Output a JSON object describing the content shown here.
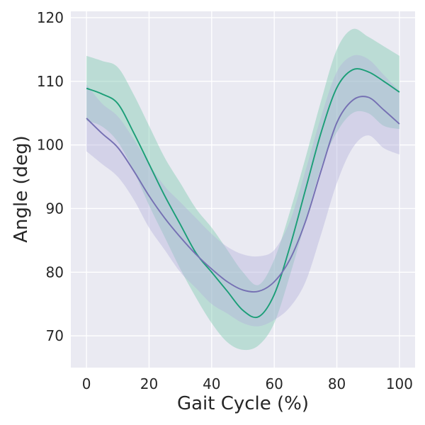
{
  "chart_data": {
    "type": "line",
    "title": "",
    "xlabel": "Gait Cycle (%)",
    "ylabel": "Angle (deg)",
    "xlim": [
      -5,
      105
    ],
    "ylim": [
      65,
      121
    ],
    "xticks": [
      0,
      20,
      40,
      60,
      80,
      100
    ],
    "yticks": [
      70,
      80,
      90,
      100,
      110,
      120
    ],
    "grid": true,
    "legend": "none",
    "x": [
      0,
      5,
      10,
      15,
      20,
      25,
      30,
      35,
      40,
      45,
      50,
      55,
      60,
      65,
      70,
      75,
      80,
      85,
      90,
      95,
      100
    ],
    "series": [
      {
        "color": "#1b9e77",
        "band_color": "#7ac8ae",
        "values": [
          108.9,
          108.0,
          106.5,
          102.0,
          97.0,
          92.0,
          87.5,
          83.0,
          80.0,
          77.0,
          74.0,
          73.0,
          76.5,
          84.0,
          93.0,
          102.0,
          109.0,
          111.8,
          111.5,
          110.0,
          108.3
        ],
        "lower": [
          103.8,
          102.9,
          100.5,
          96.0,
          90.5,
          85.5,
          80.5,
          76.0,
          72.0,
          69.0,
          67.8,
          68.5,
          72.0,
          79.5,
          88.0,
          96.5,
          102.0,
          105.0,
          105.0,
          103.0,
          102.5
        ],
        "upper": [
          114.0,
          113.2,
          112.2,
          108.0,
          103.0,
          98.0,
          94.0,
          90.0,
          87.0,
          83.5,
          80.0,
          78.0,
          82.0,
          89.5,
          98.0,
          107.0,
          115.0,
          118.2,
          117.0,
          115.5,
          114.0
        ]
      },
      {
        "color": "#7570b3",
        "band_color": "#b3b0dc",
        "values": [
          104.2,
          101.8,
          99.6,
          96.0,
          92.0,
          88.5,
          85.5,
          82.8,
          80.5,
          78.5,
          77.2,
          77.0,
          78.5,
          82.0,
          88.0,
          96.0,
          103.5,
          107.0,
          107.5,
          105.5,
          103.3
        ],
        "lower": [
          99.0,
          97.0,
          95.0,
          91.5,
          87.0,
          83.5,
          80.0,
          77.5,
          75.0,
          73.5,
          72.0,
          71.5,
          72.5,
          74.5,
          78.5,
          86.0,
          94.0,
          99.5,
          101.5,
          99.5,
          98.5
        ],
        "upper": [
          109.5,
          106.5,
          104.5,
          101.0,
          97.0,
          93.5,
          91.0,
          88.5,
          86.0,
          84.0,
          82.8,
          82.5,
          83.5,
          88.0,
          96.0,
          104.5,
          111.5,
          114.0,
          113.5,
          111.0,
          108.5
        ]
      }
    ]
  }
}
